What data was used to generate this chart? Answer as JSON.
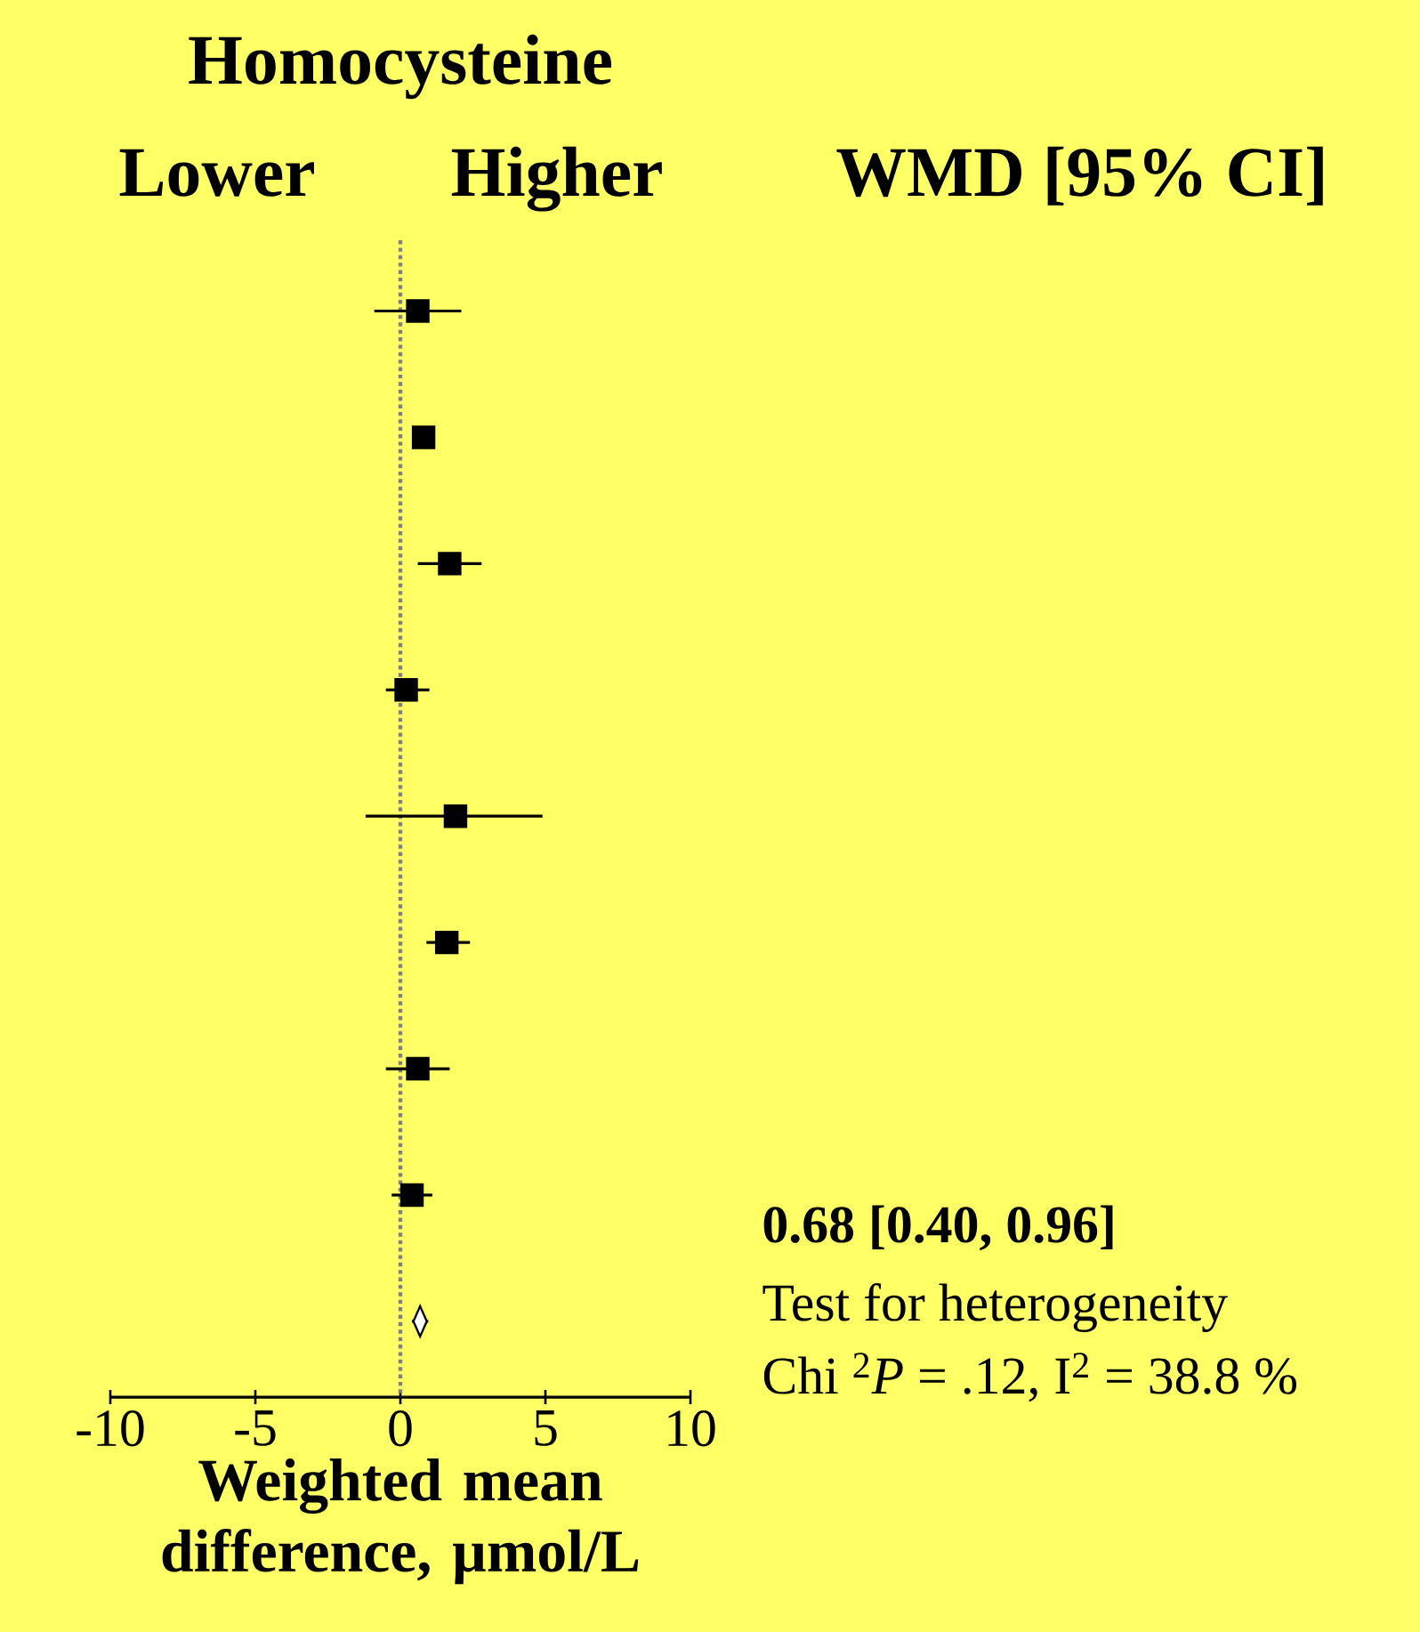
{
  "chart_data": {
    "type": "scatter",
    "orientation": "horizontal",
    "title": "Homocysteine",
    "xlabel": "Weighted mean difference, µmol/L",
    "categories": [
      null,
      null,
      null,
      null,
      null,
      null,
      null,
      null,
      null
    ],
    "series": [
      {
        "color": "#000000",
        "marker": "square",
        "values": [
          0.6,
          0.8,
          1.7,
          0.2,
          1.9,
          1.6,
          0.6,
          0.4,
          null
        ],
        "errors": [
          [
            -0.9,
            2.1
          ],
          null,
          [
            0.6,
            2.8
          ],
          [
            -0.5,
            1.0
          ],
          [
            -1.2,
            4.9
          ],
          [
            0.9,
            2.4
          ],
          [
            -0.5,
            1.7
          ],
          [
            -0.3,
            1.1
          ],
          null
        ]
      },
      {
        "color": "#ffffff",
        "marker": "diamond",
        "values": [
          null,
          null,
          null,
          null,
          null,
          null,
          null,
          null,
          0.68
        ],
        "errors": [
          null,
          null,
          null,
          null,
          null,
          null,
          null,
          null,
          [
            0.4,
            0.96
          ]
        ]
      }
    ],
    "xlim": [
      -10,
      10
    ],
    "xticks": [
      -10,
      -5,
      0,
      5,
      10
    ],
    "ref_lines": [
      {
        "axis": "x",
        "value": 0,
        "color": "#808080",
        "line_style": "dotted"
      }
    ],
    "tick_labels": "x",
    "annotations": [
      "Lower",
      "Higher",
      "WMD [95% CI]",
      "0.68 [0.40, 0.96]",
      "Test for heterogeneity",
      "Chi $^{2}$*P* = .12, I$^{2}$ = 38.8 %"
    ]
  }
}
